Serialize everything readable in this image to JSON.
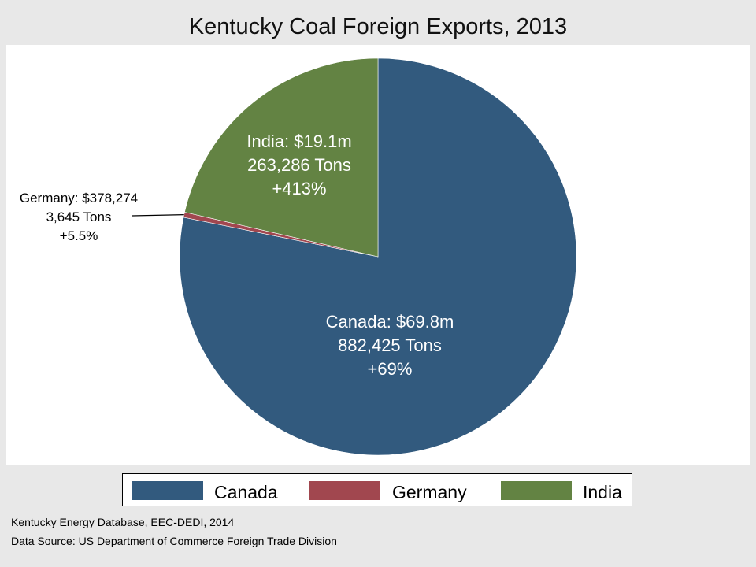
{
  "chart_data": {
    "type": "pie",
    "title": "Kentucky Coal Foreign Exports, 2013",
    "slices": [
      {
        "name": "Canada",
        "value_musd": 69.8,
        "value_text": "$69.8m",
        "tons": 882425,
        "tons_text": "882,425 Tons",
        "change_text": "+69%",
        "label": "Canada: $69.8m",
        "color": "#325a7e"
      },
      {
        "name": "Germany",
        "value_musd": 0.378274,
        "value_text": "$378,274",
        "tons": 3645,
        "tons_text": "3,645 Tons",
        "change_text": "+5.5%",
        "label": "Germany: $378,274",
        "color": "#a1474f"
      },
      {
        "name": "India",
        "value_musd": 19.1,
        "value_text": "$19.1m",
        "tons": 263286,
        "tons_text": "263,286 Tons",
        "change_text": "+413%",
        "label": "India: $19.1m",
        "color": "#638343"
      }
    ],
    "legend": {
      "position": "bottom",
      "items": [
        "Canada",
        "Germany",
        "India"
      ]
    }
  },
  "notes": {
    "line1": "Kentucky Energy Database, EEC-DEDI, 2014",
    "line2": "Data Source: US Department of Commerce Foreign Trade Division"
  }
}
